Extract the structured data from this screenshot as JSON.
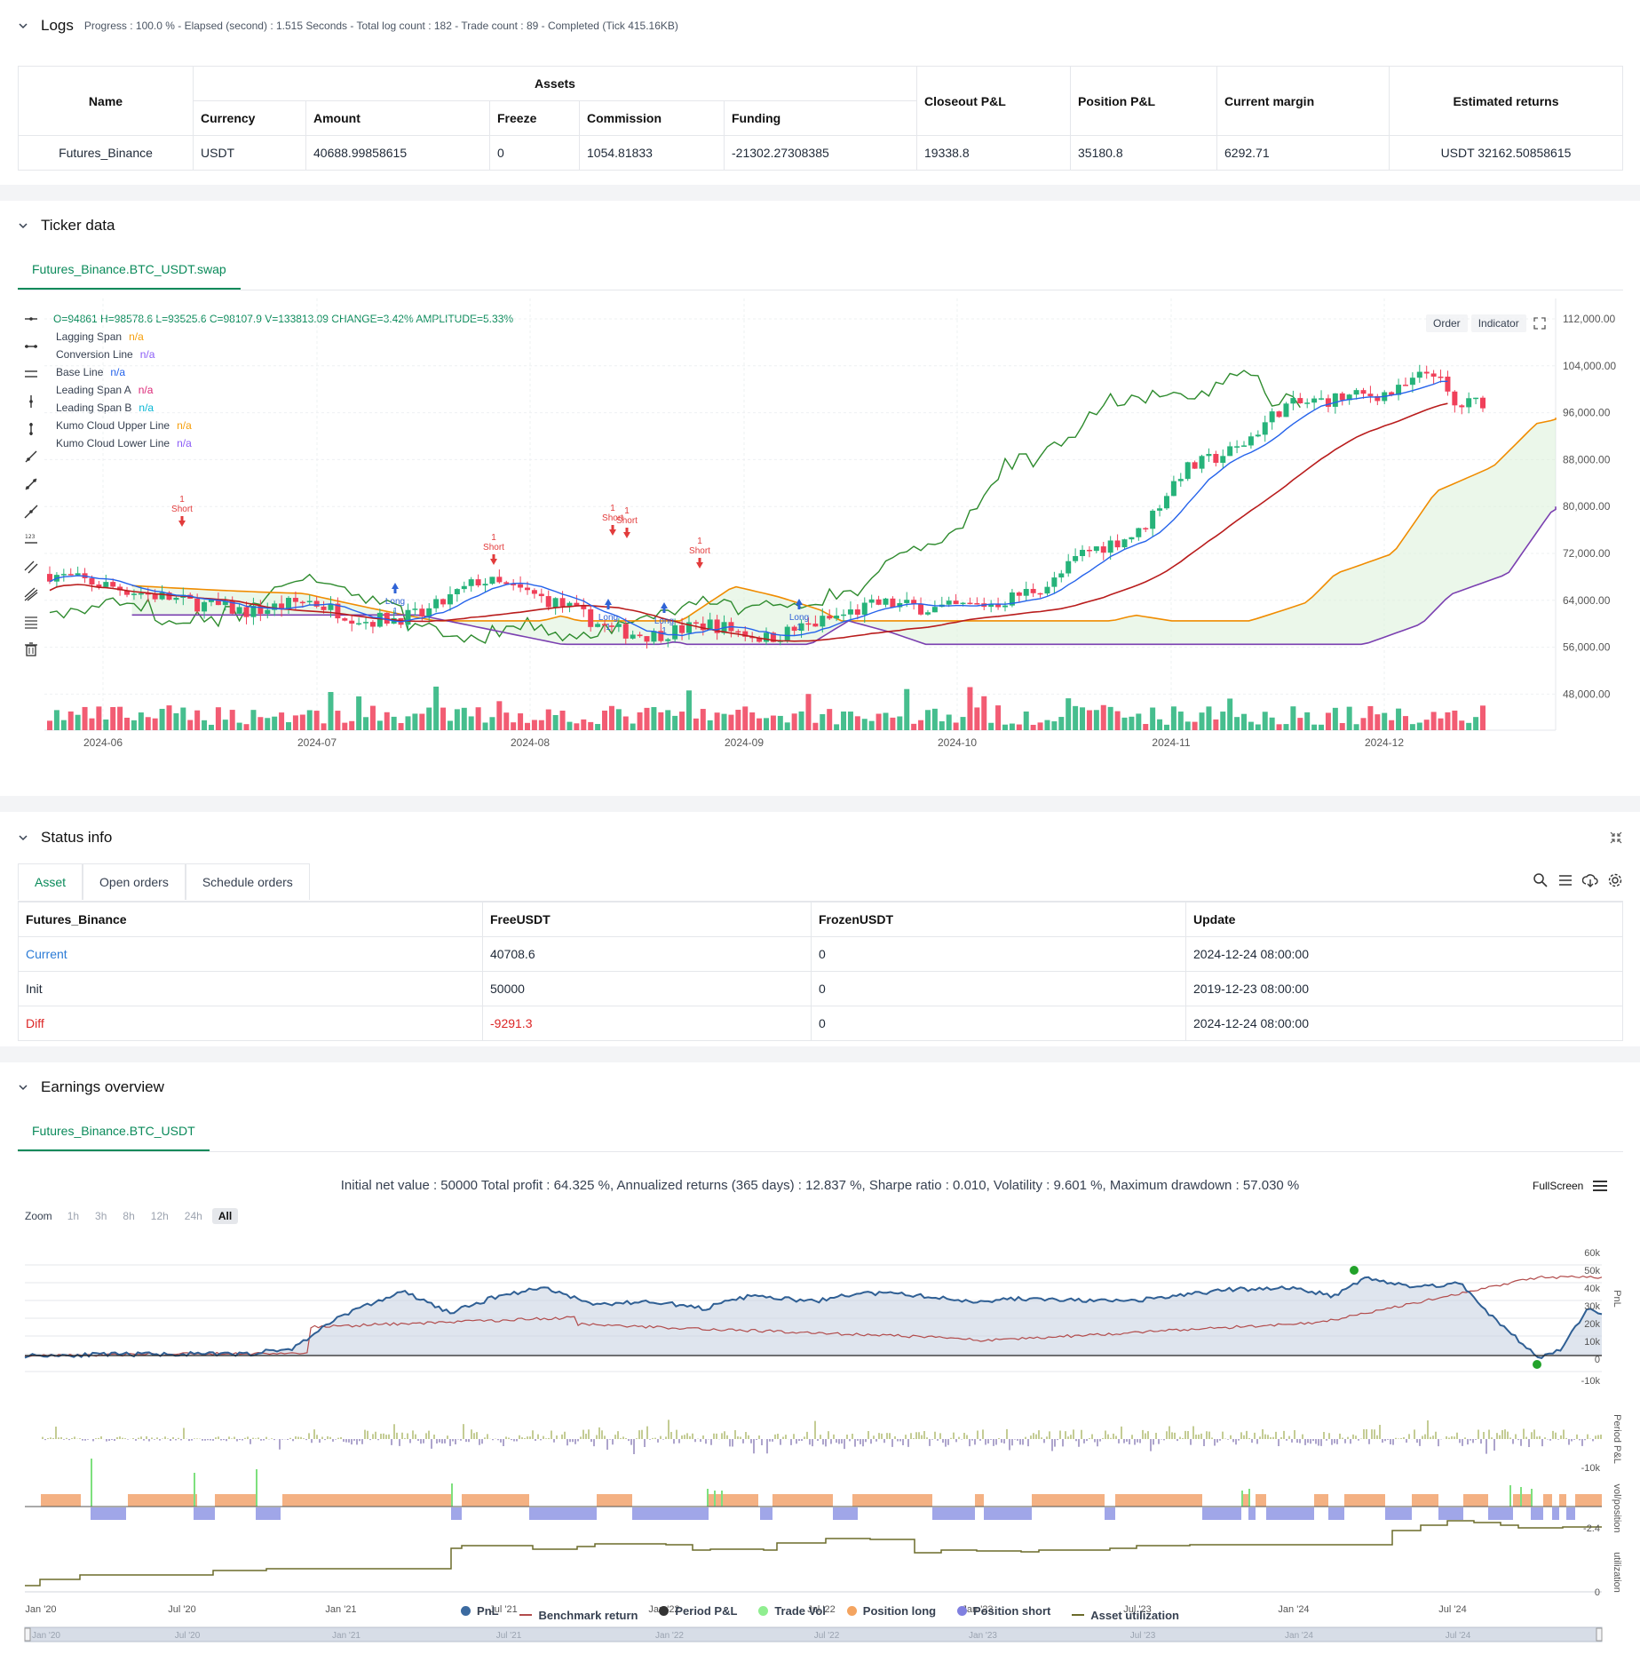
{
  "logs": {
    "title": "Logs",
    "summary": "Progress : 100.0 % - Elapsed (second) : 1.515  Seconds - Total log count : 182 - Trade count : 89 - Completed (Tick 415.16KB)"
  },
  "assets_table": {
    "headers": {
      "name": "Name",
      "assets": "Assets",
      "closeout": "Closeout P&L",
      "position": "Position P&L",
      "margin": "Current margin",
      "returns": "Estimated returns"
    },
    "sub_headers": [
      "Currency",
      "Amount",
      "Freeze",
      "Commission",
      "Funding"
    ],
    "row": {
      "name": "Futures_Binance",
      "currency": "USDT",
      "amount": "40688.99858615",
      "freeze": "0",
      "commission": "1054.81833",
      "funding": "-21302.27308385",
      "closeout": "19338.8",
      "position": "35180.8",
      "margin": "6292.71",
      "returns": "USDT 32162.50858615"
    }
  },
  "ticker": {
    "title": "Ticker data",
    "tab": "Futures_Binance.BTC_USDT.swap",
    "ohlc": "O=94861  H=98578.6  L=93525.6  C=98107.9  V=133813.09  CHANGE=3.42%  AMPLITUDE=5.33%",
    "buttons": {
      "order": "Order",
      "indicator": "Indicator"
    },
    "legend": [
      {
        "name": "Lagging Span",
        "value": "n/a",
        "color": "#f59e0b"
      },
      {
        "name": "Conversion Line",
        "value": "n/a",
        "color": "#8b5cf6"
      },
      {
        "name": "Base Line",
        "value": "n/a",
        "color": "#2563eb"
      },
      {
        "name": "Leading Span A",
        "value": "n/a",
        "color": "#db2777"
      },
      {
        "name": "Leading Span B",
        "value": "n/a",
        "color": "#06b6d4"
      },
      {
        "name": "Kumo Cloud Upper Line",
        "value": "n/a",
        "color": "#f59e0b"
      },
      {
        "name": "Kumo Cloud Lower Line",
        "value": "n/a",
        "color": "#8b5cf6"
      }
    ],
    "y_ticks": [
      "112,000.00",
      "104,000.00",
      "96,000.00",
      "88,000.00",
      "80,000.00",
      "72,000.00",
      "64,000.00",
      "56,000.00",
      "48,000.00"
    ],
    "x_ticks": [
      "2024-06",
      "2024-07",
      "2024-08",
      "2024-09",
      "2024-10",
      "2024-11",
      "2024-12"
    ],
    "markers": {
      "short": "Short",
      "long": "Long",
      "one": "1"
    }
  },
  "status": {
    "title": "Status info",
    "tabs": [
      "Asset",
      "Open orders",
      "Schedule orders"
    ],
    "headers": [
      "Futures_Binance",
      "FreeUSDT",
      "FrozenUSDT",
      "Update"
    ],
    "rows": [
      {
        "label": "Current",
        "free": "40708.6",
        "frozen": "0",
        "update": "2024-12-24 08:00:00"
      },
      {
        "label": "Init",
        "free": "50000",
        "frozen": "0",
        "update": "2019-12-23 08:00:00"
      },
      {
        "label": "Diff",
        "free": "-9291.3",
        "frozen": "0",
        "update": "2024-12-24 08:00:00"
      }
    ]
  },
  "earnings": {
    "title": "Earnings overview",
    "tab": "Futures_Binance.BTC_USDT",
    "summary": "Initial net value : 50000  Total profit : 64.325 %, Annualized returns (365 days) : 12.837 %, Sharpe ratio : 0.010, Volatility : 9.601 %, Maximum drawdown : 57.030 %",
    "fullscreen": "FullScreen",
    "zoom_label": "Zoom",
    "zoom": [
      "1h",
      "3h",
      "8h",
      "12h",
      "24h",
      "All"
    ],
    "pnl_ticks": [
      "60k",
      "50k",
      "40k",
      "30k",
      "20k",
      "10k",
      "0",
      "-10k"
    ],
    "period_ticks": [
      "-10k"
    ],
    "pos_ticks": [
      "-2.4"
    ],
    "util_ticks": [
      "0"
    ],
    "axis_titles": [
      "PnL",
      "Period P&L",
      "vol/position",
      "utilization"
    ],
    "x_ticks": [
      "Jan '20",
      "Jul '20",
      "Jan '21",
      "Jul '21",
      "Jan '22",
      "Jul '22",
      "Jan '23",
      "Jul '23",
      "Jan '24",
      "Jul '24"
    ],
    "legend": [
      {
        "name": "PnL",
        "color": "#3b6aa0",
        "kind": "dot"
      },
      {
        "name": "Benchmark return",
        "color": "#b24c4c",
        "kind": "line"
      },
      {
        "name": "Period P&L",
        "color": "#333333",
        "kind": "dot"
      },
      {
        "name": "Trade Vol",
        "color": "#90ee90",
        "kind": "dot"
      },
      {
        "name": "Position long",
        "color": "#f4a460",
        "kind": "dot"
      },
      {
        "name": "Position short",
        "color": "#8080e0",
        "kind": "dot"
      },
      {
        "name": "Asset utilization",
        "color": "#6b6b2a",
        "kind": "line"
      }
    ]
  }
}
